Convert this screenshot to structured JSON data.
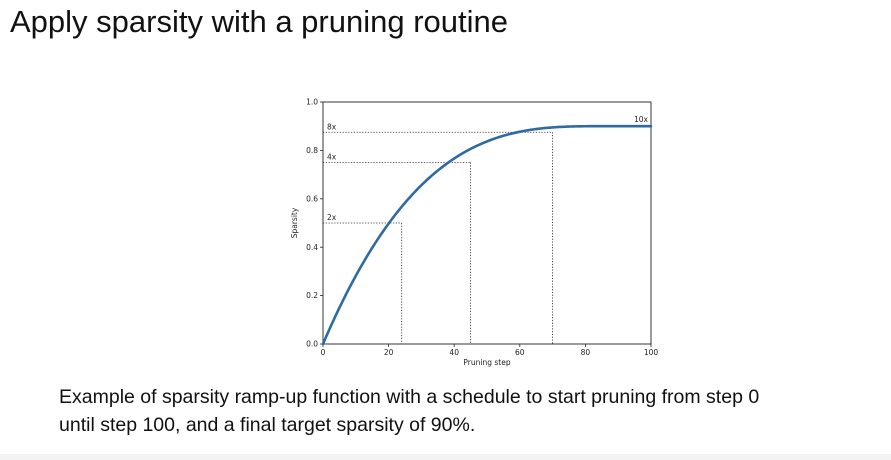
{
  "slide": {
    "title": "Apply sparsity with a pruning routine",
    "caption_line1": "Example of sparsity ramp-up function with a schedule to start pruning from step 0",
    "caption_line2": "until step 100, and a final target sparsity of 90%."
  },
  "chart_data": {
    "type": "line",
    "title": "",
    "xlabel": "Pruning step",
    "ylabel": "Sparsity",
    "xlim": [
      0,
      100
    ],
    "ylim": [
      0,
      1.0
    ],
    "x_ticks": [
      "0",
      "20",
      "40",
      "60",
      "80",
      "100"
    ],
    "y_ticks": [
      "0.0",
      "0.2",
      "0.4",
      "0.6",
      "0.8",
      "1.0"
    ],
    "grid": false,
    "series": [
      {
        "color": "#2f6aa3",
        "x": [
          0,
          5,
          10,
          15,
          20,
          25,
          30,
          35,
          40,
          45,
          50,
          55,
          60,
          65,
          70,
          75,
          80,
          85,
          90,
          95,
          100
        ],
        "y": [
          0.0,
          0.129,
          0.243,
          0.342,
          0.429,
          0.504,
          0.568,
          0.624,
          0.67,
          0.709,
          0.743,
          0.77,
          0.792,
          0.811,
          0.826,
          0.838,
          0.846,
          0.852,
          0.856,
          0.858,
          0.9
        ]
      }
    ],
    "annotations": [
      {
        "label": "2x",
        "x": 24,
        "y": 0.5
      },
      {
        "label": "4x",
        "x": 45,
        "y": 0.75
      },
      {
        "label": "8x",
        "x": 70,
        "y": 0.875
      },
      {
        "label": "10x",
        "x": 100,
        "y": 0.9
      }
    ]
  }
}
